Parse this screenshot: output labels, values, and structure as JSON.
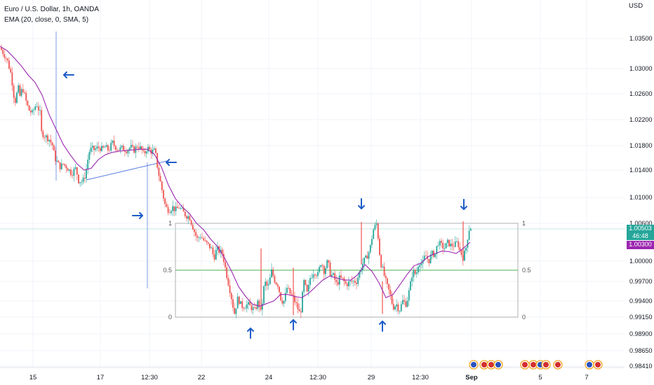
{
  "legend": {
    "symbol": "Euro / U.S. Dollar, 1h, OANDA",
    "indicator": "EMA (20, close, 0, SMA, 5)"
  },
  "axis": {
    "currency": "USD",
    "y_ticks": [
      "1.03500",
      "1.03000",
      "1.02600",
      "1.02200",
      "1.01800",
      "1.01400",
      "1.01000",
      "1.00600",
      "1.00000",
      "0.99700",
      "0.99400",
      "0.99150",
      "0.98900",
      "0.98650",
      "0.98410"
    ],
    "x_ticks": [
      "15",
      "17",
      "12:30",
      "22",
      "24",
      "12:30",
      "29",
      "12:30",
      "Sep",
      "5",
      "7"
    ]
  },
  "price_badge": {
    "price": "1.00503",
    "countdown": "46:48",
    "ema": "1.00300"
  },
  "colors": {
    "up": "#26a69a",
    "down": "#ef5350",
    "ema": "#9c27b0",
    "arrows": "#1e5dc8",
    "fib_mid": "#4caf50",
    "fib_box": "#9e9e9e",
    "trendline": "#5b7fe0"
  },
  "chart_data": {
    "type": "candlestick",
    "title": "Euro / U.S. Dollar, 1h, OANDA",
    "y_axis_label": "USD",
    "ylim": [
      0.9832,
      1.039
    ],
    "yscale": "log",
    "x_axis": "hourly time index",
    "series": [
      {
        "name": "Euro / U.S. Dollar",
        "kind": "close",
        "x": [
          0,
          5,
          10,
          16,
          21,
          26,
          28,
          32,
          38,
          41,
          46,
          52,
          57,
          59,
          64,
          70,
          75,
          78,
          83,
          86,
          90,
          95,
          102,
          108,
          112,
          118,
          122,
          127,
          131,
          133,
          137,
          140,
          146,
          150,
          155,
          160,
          164,
          169,
          174,
          181,
          186,
          191,
          196,
          201,
          205,
          210,
          215,
          221,
          225,
          230,
          236,
          241,
          246,
          250,
          255,
          260,
          265,
          270,
          276,
          281,
          286,
          292,
          297,
          301,
          305,
          309,
          313,
          317,
          321,
          325,
          329,
          334,
          339,
          344,
          349,
          353,
          358,
          363,
          368,
          372,
          377,
          382,
          387,
          392,
          396,
          401,
          405,
          409,
          414,
          418,
          423,
          428,
          433,
          438,
          442,
          447,
          453,
          458,
          462,
          467,
          471,
          475,
          480,
          484,
          489,
          493,
          497,
          502,
          508,
          513,
          518,
          522,
          527,
          532,
          537,
          542,
          546,
          551,
          556,
          560,
          565,
          569,
          574,
          579,
          584,
          588,
          593,
          597,
          602,
          606,
          611,
          615,
          620,
          624,
          629,
          633,
          638,
          642,
          647,
          652,
          656,
          660,
          664,
          668,
          672
        ],
        "values": [
          1.0335,
          1.0325,
          1.0315,
          1.029,
          1.0245,
          1.027,
          1.0255,
          1.027,
          1.0245,
          1.0235,
          1.023,
          1.0245,
          1.023,
          1.02,
          1.0195,
          1.019,
          1.018,
          1.016,
          1.015,
          1.0145,
          1.015,
          1.0145,
          1.0135,
          1.0143,
          1.0125,
          1.0123,
          1.0135,
          1.017,
          1.0176,
          1.0173,
          1.0175,
          1.0177,
          1.0174,
          1.0178,
          1.0172,
          1.0185,
          1.0178,
          1.0174,
          1.0176,
          1.0172,
          1.0178,
          1.0172,
          1.018,
          1.0175,
          1.0165,
          1.0177,
          1.017,
          1.0172,
          1.014,
          1.0115,
          1.0085,
          1.008,
          1.0085,
          1.008,
          1.0085,
          1.0078,
          1.0072,
          1.007,
          1.005,
          1.0035,
          1.004,
          1.003,
          1.0025,
          1.002,
          1.0005,
          1.002,
          1.0015,
          1.0012,
          0.999,
          0.997,
          0.995,
          0.992,
          0.9945,
          0.9932,
          0.9932,
          0.9935,
          0.993,
          0.9925,
          0.994,
          0.992,
          0.997,
          0.996,
          0.9985,
          0.997,
          0.9965,
          0.994,
          0.994,
          0.996,
          0.995,
          0.9945,
          0.9932,
          0.9918,
          0.997,
          0.995,
          0.9975,
          0.9985,
          0.998,
          1.0,
          0.9985,
          1.0,
          0.998,
          0.9978,
          0.9965,
          0.9975,
          0.9972,
          0.9965,
          0.9968,
          0.997,
          0.997,
          0.9985,
          1.0,
          1.0005,
          1.0018,
          1.005,
          1.006,
          1.0,
          0.9985,
          0.9965,
          0.995,
          0.993,
          0.9935,
          0.9925,
          0.994,
          0.9935,
          0.996,
          0.9985,
          0.998,
          1.0,
          0.9995,
          1.001,
          1.0,
          1.0012,
          1.001,
          1.003,
          1.0025,
          1.002,
          1.003,
          1.0025,
          1.0025,
          1.003,
          1.0015,
          1.0005,
          1.002,
          1.005,
          1.0055
        ]
      },
      {
        "name": "EMA (20, close, 0, SMA, 5)",
        "kind": "line",
        "x": [
          0,
          10,
          20,
          30,
          40,
          50,
          60,
          70,
          80,
          90,
          100,
          110,
          120,
          130,
          140,
          150,
          160,
          170,
          180,
          190,
          200,
          210,
          220,
          230,
          240,
          250,
          260,
          270,
          280,
          290,
          300,
          310,
          320,
          330,
          340,
          350,
          360,
          370,
          380,
          390,
          400,
          410,
          420,
          430,
          440,
          450,
          460,
          470,
          480,
          490,
          500,
          510,
          520,
          530,
          540,
          550,
          560,
          570,
          580,
          590,
          600,
          610,
          620,
          630,
          640,
          650,
          660,
          670
        ],
        "values": [
          1.0337,
          1.033,
          1.0318,
          1.0305,
          1.029,
          1.0278,
          1.0258,
          1.0228,
          1.0205,
          1.0182,
          1.0165,
          1.015,
          1.014,
          1.0143,
          1.0157,
          1.0165,
          1.0169,
          1.0171,
          1.0172,
          1.0173,
          1.0174,
          1.0174,
          1.0166,
          1.0145,
          1.0118,
          1.0098,
          1.0085,
          1.0075,
          1.006,
          1.005,
          1.0035,
          1.0023,
          1.0005,
          0.9985,
          0.9962,
          0.9947,
          0.9935,
          0.9932,
          0.9936,
          0.994,
          0.995,
          0.995,
          0.9947,
          0.9945,
          0.9952,
          0.9962,
          0.9972,
          0.9978,
          0.9975,
          0.9972,
          0.9972,
          0.998,
          0.9995,
          0.9985,
          0.9968,
          0.9945,
          0.995,
          0.9965,
          0.998,
          0.9993,
          0.9997,
          1.0007,
          1.0012,
          1.0016,
          1.0015,
          1.0012,
          1.002,
          1.003
        ]
      }
    ],
    "annotations": {
      "fib_retracement": {
        "levels": [
          "1",
          "0.5",
          "0"
        ],
        "price_1": 1.006,
        "price_0": 0.9915
      },
      "markers": [
        "left",
        "left",
        "right",
        "up",
        "up",
        "up",
        "down",
        "down"
      ]
    }
  }
}
